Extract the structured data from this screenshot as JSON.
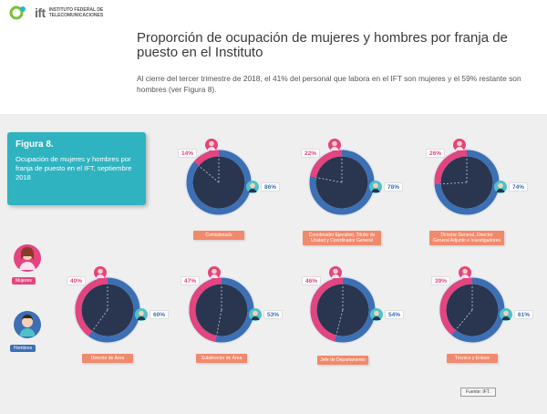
{
  "header": {
    "logo_text": "ift",
    "institution": "INSTITUTO FEDERAL DE TELECOMUNICACIONES"
  },
  "title": "Proporción de ocupación de mujeres y hombres por franja de puesto en el Instituto",
  "intro": "Al cierre del tercer trimestre de 2018, el 41% del personal que labora en el IFT son mujeres y el 59% restante son hombres (ver Figura 8).",
  "figure": {
    "number": "Figura 8.",
    "description": "Ocupación de mujeres y hombres por franja de puesto en el IFT, septiembre 2018"
  },
  "legend": {
    "women": "Mujeres",
    "men": "Hombres"
  },
  "colors": {
    "women": "#e2457f",
    "men": "#3c6fb4",
    "teal": "#2fb3c0",
    "category": "#f08a6d"
  },
  "chart_data": {
    "type": "pie",
    "series": [
      {
        "name": "Mujeres",
        "values": [
          14,
          22,
          26,
          40,
          47,
          46,
          39
        ]
      },
      {
        "name": "Hombres",
        "values": [
          86,
          78,
          74,
          60,
          53,
          54,
          61
        ]
      }
    ],
    "categories": [
      "Comisionado",
      "Coordinador Ejecutivo, Titular de Unidad y Coordinador General",
      "Director General, Director General Adjunto e Investigadores",
      "Director de Área",
      "Subdirector de Área",
      "Jefe de Departamento",
      "Técnico y Enlace"
    ],
    "labels": [
      {
        "women": "14%",
        "men": "86%"
      },
      {
        "women": "22%",
        "men": "78%"
      },
      {
        "women": "26%",
        "men": "74%"
      },
      {
        "women": "40%",
        "men": "60%"
      },
      {
        "women": "47%",
        "men": "53%"
      },
      {
        "women": "46%",
        "men": "54%"
      },
      {
        "women": "39%",
        "men": "61%"
      }
    ]
  },
  "source": "Fuente: IFT."
}
